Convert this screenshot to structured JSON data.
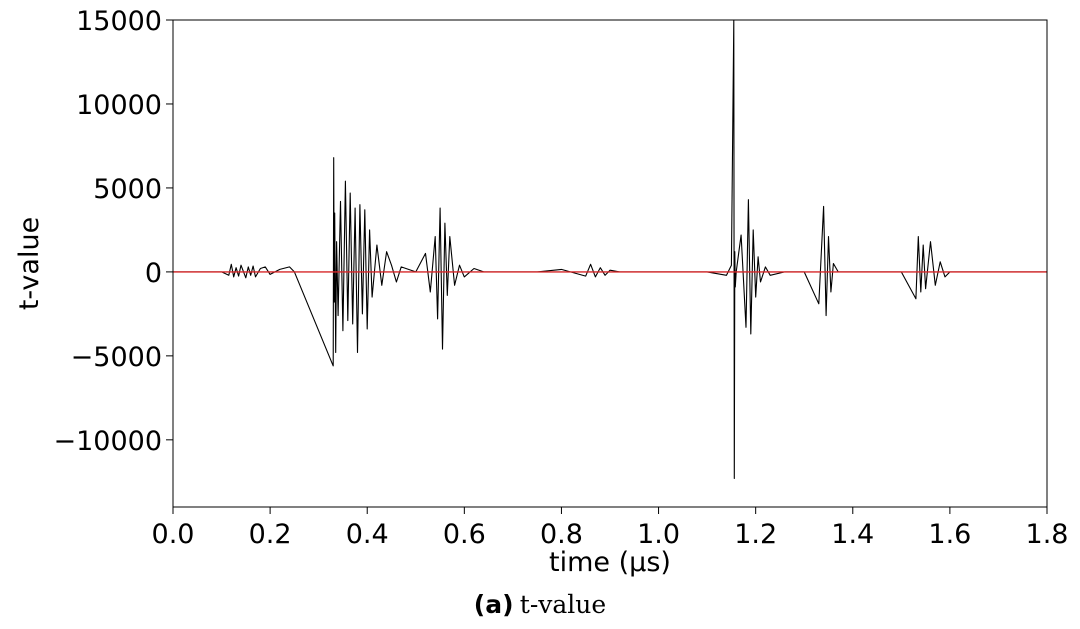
{
  "caption": {
    "label": "(a)",
    "text": "t-value"
  },
  "chart_data": {
    "type": "line",
    "title": "",
    "xlabel": "time (μs)",
    "ylabel": "t-value",
    "xlim": [
      0.0,
      1.8
    ],
    "ylim": [
      -14000,
      15000
    ],
    "xticks": [
      0.0,
      0.2,
      0.4,
      0.6,
      0.8,
      1.0,
      1.2,
      1.4,
      1.6,
      1.8
    ],
    "xtick_labels": [
      "0.0",
      "0.2",
      "0.4",
      "0.6",
      "0.8",
      "1.0",
      "1.2",
      "1.4",
      "1.6",
      "1.8"
    ],
    "yticks": [
      -10000,
      -5000,
      0,
      5000,
      10000,
      15000
    ],
    "ytick_labels": [
      "−10000",
      "−5000",
      "0",
      "5000",
      "10000",
      "15000"
    ],
    "grid": false,
    "series": [
      {
        "color": "#000000",
        "x": [
          0.0,
          0.1,
          0.115,
          0.12,
          0.125,
          0.13,
          0.135,
          0.14,
          0.15,
          0.155,
          0.16,
          0.165,
          0.17,
          0.18,
          0.19,
          0.2,
          0.22,
          0.24,
          0.25,
          0.33,
          0.331,
          0.332,
          0.333,
          0.335,
          0.337,
          0.34,
          0.345,
          0.35,
          0.355,
          0.36,
          0.365,
          0.37,
          0.375,
          0.38,
          0.385,
          0.39,
          0.395,
          0.4,
          0.405,
          0.41,
          0.42,
          0.43,
          0.44,
          0.45,
          0.46,
          0.47,
          0.5,
          0.52,
          0.53,
          0.54,
          0.545,
          0.55,
          0.555,
          0.56,
          0.565,
          0.57,
          0.58,
          0.59,
          0.6,
          0.62,
          0.64,
          0.7,
          0.75,
          0.8,
          0.85,
          0.86,
          0.87,
          0.88,
          0.89,
          0.9,
          0.92,
          0.95,
          1.0,
          1.05,
          1.1,
          1.14,
          1.15,
          1.155,
          1.156,
          1.157,
          1.158,
          1.16,
          1.17,
          1.18,
          1.185,
          1.19,
          1.195,
          1.2,
          1.205,
          1.21,
          1.22,
          1.23,
          1.26,
          1.3,
          1.33,
          1.34,
          1.345,
          1.35,
          1.355,
          1.36,
          1.37,
          1.4,
          1.45,
          1.5,
          1.53,
          1.535,
          1.54,
          1.545,
          1.55,
          1.56,
          1.57,
          1.58,
          1.59,
          1.6,
          1.62,
          1.65,
          1.7,
          1.75,
          1.8
        ],
        "y": [
          0,
          0,
          -200,
          450,
          -300,
          250,
          -250,
          400,
          -350,
          300,
          -200,
          350,
          -300,
          200,
          300,
          -150,
          150,
          300,
          0,
          -5600,
          6800,
          -1800,
          3500,
          -4800,
          1800,
          -2600,
          4200,
          -3500,
          5400,
          -2900,
          4700,
          -3100,
          3800,
          -4800,
          4000,
          -2500,
          3700,
          -3400,
          2500,
          -1500,
          1600,
          -800,
          1200,
          400,
          -600,
          300,
          0,
          1100,
          -1200,
          2100,
          -2800,
          3800,
          -4600,
          2900,
          -1400,
          2100,
          -800,
          400,
          -300,
          200,
          0,
          0,
          0,
          150,
          -250,
          450,
          -300,
          250,
          -200,
          100,
          0,
          0,
          0,
          0,
          0,
          -200,
          400,
          15000,
          -12300,
          1200,
          -900,
          0,
          2200,
          -3300,
          4300,
          -3700,
          2500,
          -1500,
          900,
          -600,
          300,
          -200,
          0,
          0,
          -1900,
          3900,
          -2600,
          2100,
          -1200,
          500,
          0,
          0,
          0,
          0,
          -1600,
          2100,
          -1200,
          1600,
          -1000,
          1800,
          -800,
          600,
          -300,
          0,
          0,
          0,
          0,
          0,
          0
        ]
      },
      {
        "color": "#d62728",
        "x": [
          0.0,
          1.8
        ],
        "y": [
          0,
          0
        ]
      }
    ]
  }
}
